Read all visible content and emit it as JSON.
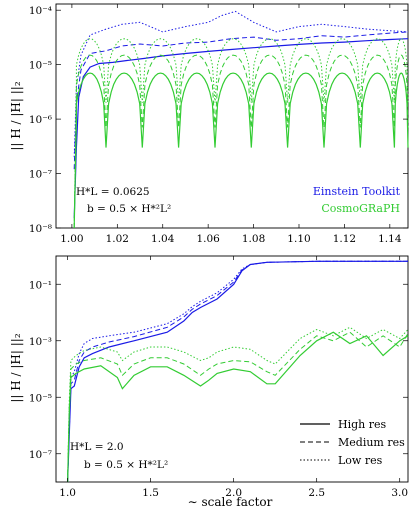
{
  "chart_data": [
    {
      "type": "line",
      "xlabel": "",
      "ylabel": "|| H / |H| ||₂",
      "yscale": "log",
      "xlim": [
        0.993,
        1.148
      ],
      "ylim": [
        1e-08,
        0.00013
      ],
      "x_ticks": [
        "1.00",
        "1.02",
        "1.04",
        "1.06",
        "1.08",
        "1.10",
        "1.12",
        "1.14"
      ],
      "y_ticks": [
        "10⁻⁸",
        "10⁻⁷",
        "10⁻⁶",
        "10⁻⁵",
        "10⁻⁴"
      ],
      "annotations": [
        "H*L = 0.0625",
        "b = 0.5 × H*²L²"
      ],
      "legend": {
        "position": "lower-right",
        "entries": [
          {
            "label": "Einstein Toolkit",
            "color": "#1a1ae6"
          },
          {
            "label": "CosmoGRaPH",
            "color": "#33cc33"
          }
        ]
      },
      "series": [
        {
          "code": "Einstein Toolkit",
          "resolution": "High res",
          "color": "#1a1ae6",
          "style": "solid",
          "x": [
            1.001,
            1.002,
            1.003,
            1.005,
            1.008,
            1.012,
            1.018,
            1.025,
            1.032,
            1.04,
            1.05,
            1.06,
            1.07,
            1.08,
            1.09,
            1.1,
            1.11,
            1.12,
            1.13,
            1.14,
            1.148
          ],
          "y": [
            1.5e-08,
            3e-07,
            2.5e-06,
            6e-06,
            9e-06,
            1.05e-05,
            1.1e-05,
            1.2e-05,
            1.3e-05,
            1.45e-05,
            1.6e-05,
            1.75e-05,
            1.9e-05,
            2.05e-05,
            2.2e-05,
            2.35e-05,
            2.5e-05,
            2.6e-05,
            2.75e-05,
            2.9e-05,
            3e-05
          ]
        },
        {
          "code": "Einstein Toolkit",
          "resolution": "Medium res",
          "color": "#1a1ae6",
          "style": "dashed",
          "x": [
            1.001,
            1.002,
            1.004,
            1.008,
            1.015,
            1.022,
            1.03,
            1.04,
            1.05,
            1.06,
            1.07,
            1.08,
            1.09,
            1.1,
            1.11,
            1.12,
            1.13,
            1.14,
            1.148
          ],
          "y": [
            1.2e-07,
            2e-06,
            8e-06,
            1.6e-05,
            1.8e-05,
            2.2e-05,
            2.4e-05,
            2.2e-05,
            2.5e-05,
            2.6e-05,
            3e-05,
            3.2e-05,
            2.8e-05,
            3e-05,
            3.4e-05,
            3.2e-05,
            3.5e-05,
            3.8e-05,
            4e-05
          ]
        },
        {
          "code": "Einstein Toolkit",
          "resolution": "Low res",
          "color": "#1a1ae6",
          "style": "dotted",
          "x": [
            1.001,
            1.002,
            1.004,
            1.008,
            1.015,
            1.022,
            1.03,
            1.04,
            1.05,
            1.06,
            1.066,
            1.072,
            1.08,
            1.09,
            1.1,
            1.11,
            1.12,
            1.13,
            1.14,
            1.148
          ],
          "y": [
            2e-07,
            4e-06,
            1.5e-05,
            3.5e-05,
            4.5e-05,
            5.5e-05,
            6e-05,
            4e-05,
            5e-05,
            6e-05,
            8e-05,
            9.5e-05,
            6e-05,
            4e-05,
            5e-05,
            5.5e-05,
            5e-05,
            4.5e-05,
            4.2e-05,
            4e-05
          ]
        },
        {
          "code": "CosmoGRaPH",
          "resolution": "High res",
          "color": "#33cc33",
          "style": "solid",
          "dips": [
            1.015,
            1.031,
            1.047,
            1.063,
            1.079,
            1.095,
            1.111,
            1.127,
            1.142
          ],
          "peak": 7e-06,
          "trough": 3e-07
        },
        {
          "code": "CosmoGRaPH",
          "resolution": "Medium res",
          "color": "#33cc33",
          "style": "dashed",
          "dips": [
            1.015,
            1.031,
            1.047,
            1.063,
            1.079,
            1.095,
            1.111,
            1.127,
            1.142
          ],
          "peak": 1.5e-05,
          "trough": 7e-07
        },
        {
          "code": "CosmoGRaPH",
          "resolution": "Low res",
          "color": "#33cc33",
          "style": "dotted",
          "dips": [
            1.015,
            1.031,
            1.047,
            1.063,
            1.079,
            1.095,
            1.111,
            1.127,
            1.142
          ],
          "peak": 3e-05,
          "trough": 2e-06
        }
      ]
    },
    {
      "type": "line",
      "xlabel": "∼ scale factor",
      "ylabel": "|| H / |H| ||₂",
      "yscale": "log",
      "xlim": [
        0.93,
        3.05
      ],
      "ylim": [
        1e-08,
        1
      ],
      "x_ticks": [
        "1.0",
        "1.5",
        "2.0",
        "2.5",
        "3.0"
      ],
      "y_ticks": [
        "10⁻⁷",
        "10⁻⁵",
        "10⁻³",
        "10⁻¹"
      ],
      "annotations": [
        "H*L = 2.0",
        "b = 0.5 × H*²L²"
      ],
      "legend": {
        "position": "lower-right",
        "entries": [
          {
            "label": "High res",
            "style": "solid"
          },
          {
            "label": "Medium res",
            "style": "dashed"
          },
          {
            "label": "Low res",
            "style": "dotted"
          }
        ]
      },
      "series": [
        {
          "code": "Einstein Toolkit",
          "resolution": "High res",
          "color": "#1a1ae6",
          "style": "solid",
          "x": [
            1.0,
            1.01,
            1.02,
            1.04,
            1.07,
            1.1,
            1.15,
            1.25,
            1.4,
            1.6,
            1.7,
            1.75,
            1.8,
            1.9,
            2.0,
            2.05,
            2.1,
            2.2,
            2.5,
            3.05
          ],
          "y": [
            1e-08,
            5e-07,
            2e-05,
            2.5e-05,
            0.00012,
            0.00025,
            0.00035,
            0.0006,
            0.001,
            0.002,
            0.005,
            0.01,
            0.015,
            0.03,
            0.1,
            0.3,
            0.5,
            0.6,
            0.65,
            0.65
          ]
        },
        {
          "code": "Einstein Toolkit",
          "resolution": "Medium res",
          "color": "#1a1ae6",
          "style": "dashed",
          "x": [
            1.0,
            1.01,
            1.02,
            1.04,
            1.07,
            1.1,
            1.15,
            1.25,
            1.4,
            1.6,
            1.7,
            1.75,
            1.8,
            1.9,
            2.0,
            2.05,
            2.1,
            2.2,
            2.5,
            3.05
          ],
          "y": [
            1e-08,
            7e-07,
            3e-05,
            4e-05,
            0.0002,
            0.0004,
            0.0006,
            0.0009,
            0.0014,
            0.003,
            0.007,
            0.013,
            0.02,
            0.04,
            0.12,
            0.32,
            0.5,
            0.6,
            0.65,
            0.65
          ]
        },
        {
          "code": "Einstein Toolkit",
          "resolution": "Low res",
          "color": "#1a1ae6",
          "style": "dotted",
          "x": [
            1.0,
            1.01,
            1.02,
            1.04,
            1.07,
            1.1,
            1.15,
            1.25,
            1.4,
            1.6,
            1.7,
            1.75,
            1.8,
            1.9,
            2.0,
            2.05,
            2.1,
            2.2,
            2.5,
            3.05
          ],
          "y": [
            1e-08,
            1e-06,
            5e-05,
            8e-05,
            0.00035,
            0.0008,
            0.0012,
            0.0015,
            0.002,
            0.004,
            0.009,
            0.016,
            0.025,
            0.05,
            0.15,
            0.35,
            0.5,
            0.6,
            0.65,
            0.65
          ]
        },
        {
          "code": "CosmoGRaPH",
          "resolution": "High res",
          "color": "#33cc33",
          "style": "solid",
          "x": [
            1.0,
            1.01,
            1.02,
            1.05,
            1.1,
            1.2,
            1.3,
            1.33,
            1.4,
            1.5,
            1.6,
            1.7,
            1.8,
            1.85,
            1.9,
            2.0,
            2.1,
            2.2,
            2.25,
            2.4,
            2.5,
            2.6,
            2.7,
            2.8,
            2.9,
            3.0,
            3.05
          ],
          "y": [
            1e-08,
            3e-06,
            5e-05,
            7e-05,
            0.0001,
            0.00013,
            5e-05,
            2e-05,
            6e-05,
            0.00012,
            0.00012,
            6e-05,
            2.5e-05,
            4e-05,
            7e-05,
            0.0001,
            8e-05,
            3e-05,
            3e-05,
            0.0003,
            0.001,
            0.002,
            0.0008,
            0.0015,
            0.0003,
            0.001,
            0.0015
          ]
        },
        {
          "code": "CosmoGRaPH",
          "resolution": "Medium res",
          "color": "#33cc33",
          "style": "dashed",
          "x": [
            1.0,
            1.01,
            1.02,
            1.05,
            1.1,
            1.2,
            1.3,
            1.33,
            1.4,
            1.5,
            1.6,
            1.7,
            1.8,
            1.85,
            1.9,
            2.0,
            2.1,
            2.2,
            2.25,
            2.4,
            2.5,
            2.6,
            2.7,
            2.8,
            2.9,
            3.0,
            3.05
          ],
          "y": [
            1e-08,
            5e-06,
            0.0001,
            0.00015,
            0.0002,
            0.00025,
            0.00015,
            6e-05,
            0.00015,
            0.00025,
            0.00025,
            0.00015,
            6e-05,
            0.0001,
            0.00015,
            0.0002,
            0.00018,
            8e-05,
            6e-05,
            0.0005,
            0.0015,
            0.001,
            0.002,
            0.0006,
            0.0015,
            0.0006,
            0.0018
          ]
        },
        {
          "code": "CosmoGRaPH",
          "resolution": "Low res",
          "color": "#33cc33",
          "style": "dotted",
          "x": [
            1.0,
            1.01,
            1.02,
            1.05,
            1.1,
            1.2,
            1.3,
            1.33,
            1.4,
            1.5,
            1.6,
            1.7,
            1.8,
            1.85,
            1.9,
            2.0,
            2.1,
            2.2,
            2.25,
            2.4,
            2.5,
            2.6,
            2.7,
            2.8,
            2.9,
            3.0,
            3.05
          ],
          "y": [
            1e-08,
            8e-06,
            0.0002,
            0.0003,
            0.00045,
            0.0006,
            0.0004,
            0.0002,
            0.0004,
            0.0006,
            0.0006,
            0.0004,
            0.0002,
            0.00025,
            0.0004,
            0.0006,
            0.0005,
            0.0002,
            0.00015,
            0.0012,
            0.0025,
            0.0015,
            0.003,
            0.0012,
            0.0025,
            0.0012,
            0.0025
          ]
        }
      ]
    }
  ]
}
